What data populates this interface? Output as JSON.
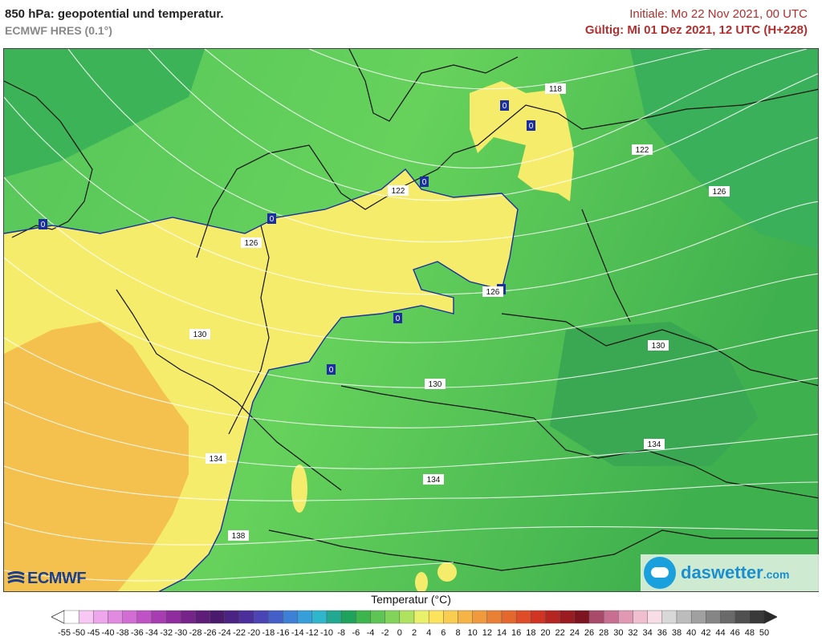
{
  "header": {
    "title": "850 hPa: geopotential und temperatur.",
    "model": "ECMWF HRES (0.1°)",
    "init": "Initiale: Mo 22 Nov 2021, 00 UTC",
    "valid": "Gültig: Mi 01 Dez 2021, 12 UTC (H+228)"
  },
  "map": {
    "geopotential_labels": [
      "118",
      "122",
      "122",
      "126",
      "126",
      "126",
      "130",
      "130",
      "130",
      "134",
      "134",
      "134",
      "138"
    ],
    "zero_isotherm_labels": [
      "0",
      "0",
      "0",
      "0",
      "0",
      "0",
      "0",
      "0"
    ]
  },
  "logos": {
    "left": "ECMWF",
    "right_main": "daswetter",
    "right_suffix": ".com"
  },
  "legend": {
    "title": "Temperatur (°C)",
    "labels": [
      "-55",
      "-50",
      "-45",
      "-40",
      "-38",
      "-36",
      "-34",
      "-32",
      "-30",
      "-28",
      "-26",
      "-24",
      "-22",
      "-20",
      "-18",
      "-16",
      "-14",
      "-12",
      "-10",
      "-8",
      "-6",
      "-4",
      "-2",
      "0",
      "2",
      "4",
      "6",
      "8",
      "10",
      "12",
      "14",
      "16",
      "18",
      "20",
      "22",
      "24",
      "26",
      "28",
      "30",
      "32",
      "34",
      "36",
      "38",
      "40",
      "42",
      "44",
      "46",
      "48",
      "50"
    ],
    "colors": [
      "#ffffff",
      "#f6c8f3",
      "#eea7ec",
      "#e18ae0",
      "#d16dd3",
      "#bf52c4",
      "#a83db2",
      "#8f2d9e",
      "#76238a",
      "#5e1d78",
      "#4a1a6c",
      "#4b2382",
      "#4b309c",
      "#4a44b4",
      "#4460c8",
      "#3d80d6",
      "#369fd9",
      "#2fb5cc",
      "#22a890",
      "#1fa35c",
      "#3cb54c",
      "#5ec453",
      "#82d35a",
      "#aee25f",
      "#e9f06a",
      "#fbe35c",
      "#f9cd4f",
      "#f5b445",
      "#f09a3d",
      "#ea8035",
      "#e4672e",
      "#de4d27",
      "#cf3522",
      "#b52521",
      "#9a1c21",
      "#7e1420",
      "#a94a6a",
      "#c86e90",
      "#e198b3",
      "#efbfd0",
      "#f7dde6",
      "#d8d8d8",
      "#bcbcbc",
      "#a0a0a0",
      "#858585",
      "#6a6a6a",
      "#505050",
      "#3a3a3a"
    ]
  }
}
